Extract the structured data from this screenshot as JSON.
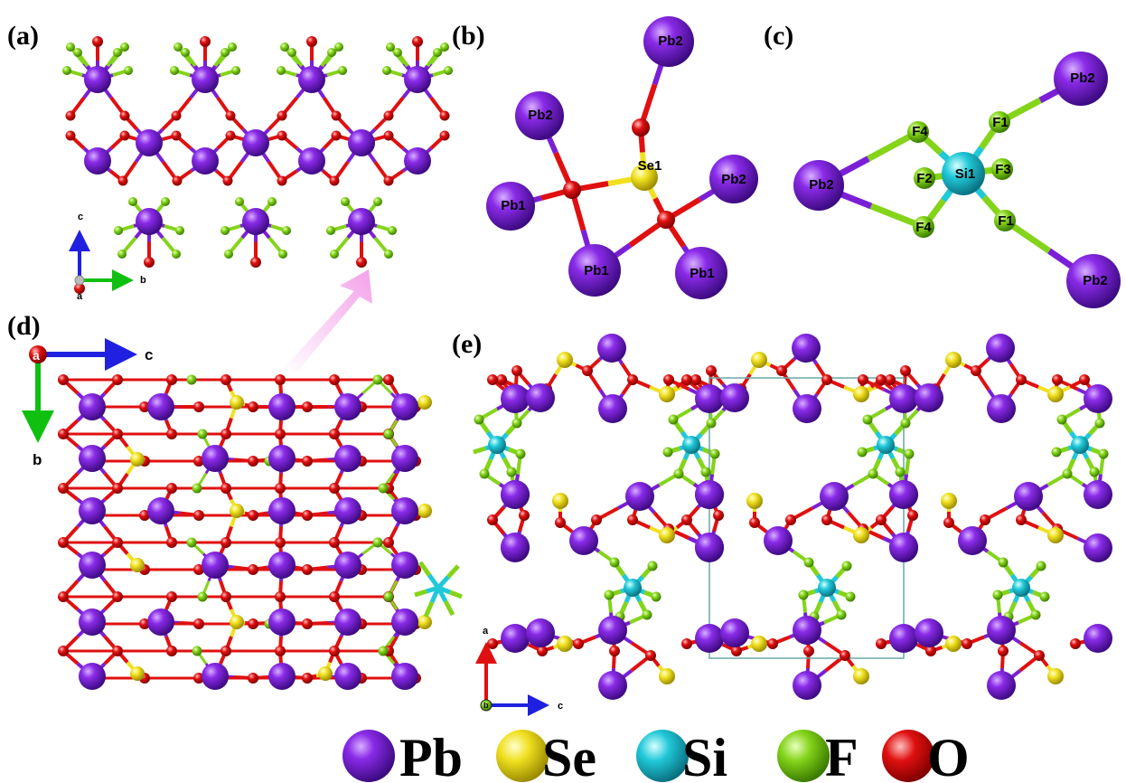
{
  "panel_labels": {
    "a": "(a)",
    "b": "(b)",
    "c": "(c)",
    "d": "(d)",
    "e": "(e)"
  },
  "colors": {
    "Pb": "#7b1fd6",
    "Se": "#f0e020",
    "Si": "#20c8d8",
    "F": "#84d41a",
    "O": "#e01010",
    "axis_x": "#2020e0",
    "axis_y": "#10c010",
    "axis_z": "#e01010",
    "cell": "#6aa8a8",
    "arrow": "#f8b0ee"
  },
  "panel_a": {
    "axis_c": "c",
    "axis_b": "b",
    "axis_a": "a"
  },
  "panel_b": {
    "labels": [
      "Pb2",
      "Pb2",
      "Se1",
      "Pb1",
      "Pb2",
      "Pb1",
      "Pb1"
    ]
  },
  "panel_c": {
    "labels": [
      "Pb2",
      "F4",
      "F1",
      "Si1",
      "F2",
      "F3",
      "Pb2",
      "F4",
      "F1",
      "Pb2"
    ]
  },
  "panel_d": {
    "axis_a": "a",
    "axis_c": "c",
    "axis_b": "b"
  },
  "panel_e": {
    "axis_a": "a",
    "axis_b": "b",
    "axis_c": "c"
  },
  "legend": [
    {
      "element": "Pb",
      "label": "Pb"
    },
    {
      "element": "Se",
      "label": "Se"
    },
    {
      "element": "Si",
      "label": "Si"
    },
    {
      "element": "F",
      "label": "F"
    },
    {
      "element": "O",
      "label": "O"
    }
  ]
}
